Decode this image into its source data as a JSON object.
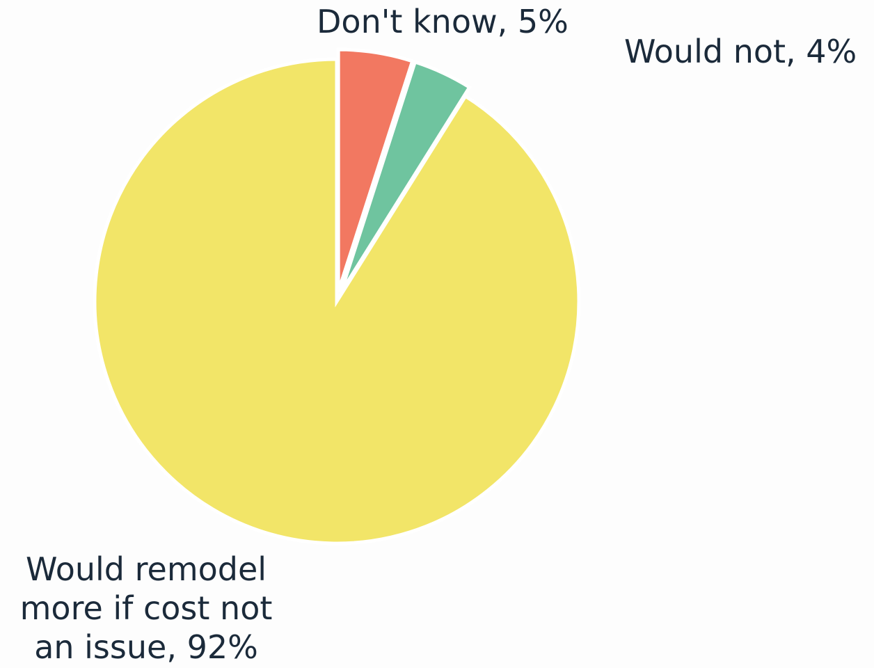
{
  "chart_data": {
    "type": "pie",
    "title": "",
    "start_angle_deg": 0,
    "direction": "clockwise",
    "slices": [
      {
        "label": "Don't know, 5%",
        "category": "Don't know",
        "value": 5,
        "color": "#f27861"
      },
      {
        "label": "Would not, 4%",
        "category": "Would not",
        "value": 4,
        "color": "#6fc49f"
      },
      {
        "label": "Would remodel more if cost not an issue, 92%",
        "category": "Would remodel more if cost not an issue",
        "value": 92,
        "color": "#f2e568"
      }
    ]
  }
}
